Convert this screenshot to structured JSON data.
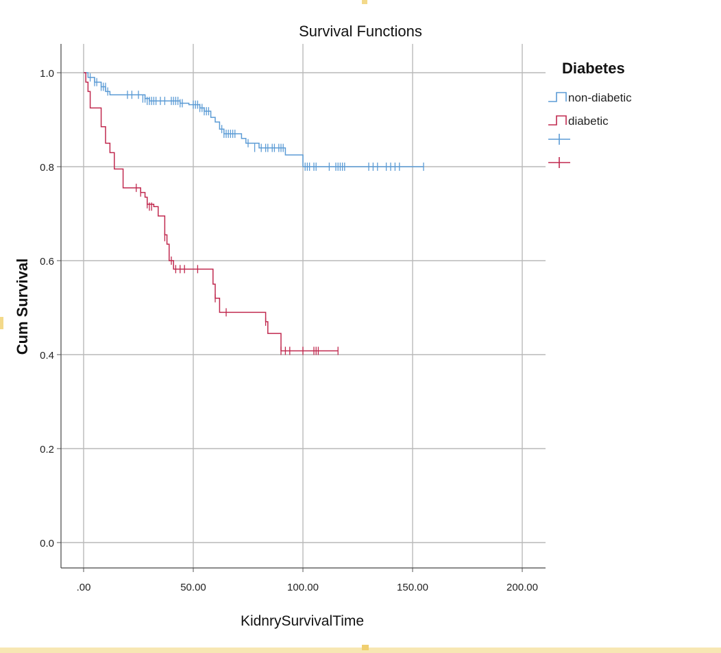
{
  "chart_data": {
    "type": "line",
    "title": "Survival Functions",
    "xlabel": "KidnrySurvivalTime",
    "ylabel": "Cum Survival",
    "xlim": [
      -10,
      210
    ],
    "ylim": [
      -0.06,
      1.05
    ],
    "x_ticks": [
      0,
      50,
      100,
      150,
      200
    ],
    "x_tick_labels": [
      ".00",
      "50.00",
      "100.00",
      "150.00",
      "200.00"
    ],
    "y_ticks": [
      0.0,
      0.2,
      0.4,
      0.6,
      0.8,
      1.0
    ],
    "y_tick_labels": [
      "0.0",
      "0.2",
      "0.4",
      "0.6",
      "0.8",
      "1.0"
    ],
    "grid": true,
    "legend": {
      "title": "Diabetes",
      "placement": "top-right",
      "entries": [
        "non-diabetic",
        "diabetic",
        "",
        ""
      ]
    },
    "series": [
      {
        "name": "non-diabetic",
        "color": "#5b9bd5",
        "step": [
          [
            0,
            1.0
          ],
          [
            2,
            0.99
          ],
          [
            5,
            0.98
          ],
          [
            8,
            0.97
          ],
          [
            10,
            0.96
          ],
          [
            12,
            0.953
          ],
          [
            28,
            0.945
          ],
          [
            30,
            0.94
          ],
          [
            44,
            0.935
          ],
          [
            48,
            0.932
          ],
          [
            53,
            0.925
          ],
          [
            55,
            0.918
          ],
          [
            58,
            0.905
          ],
          [
            60,
            0.895
          ],
          [
            62,
            0.88
          ],
          [
            64,
            0.87
          ],
          [
            72,
            0.86
          ],
          [
            74,
            0.85
          ],
          [
            80,
            0.84
          ],
          [
            92,
            0.825
          ],
          [
            100,
            0.8
          ],
          [
            155,
            0.8
          ]
        ],
        "censored": [
          [
            3,
            0.99
          ],
          [
            5,
            0.98
          ],
          [
            6,
            0.98
          ],
          [
            8,
            0.97
          ],
          [
            9,
            0.97
          ],
          [
            10,
            0.97
          ],
          [
            11,
            0.96
          ],
          [
            20,
            0.953
          ],
          [
            22,
            0.953
          ],
          [
            25,
            0.953
          ],
          [
            27,
            0.945
          ],
          [
            28,
            0.945
          ],
          [
            29,
            0.94
          ],
          [
            30,
            0.94
          ],
          [
            31,
            0.94
          ],
          [
            32,
            0.94
          ],
          [
            33,
            0.94
          ],
          [
            35,
            0.94
          ],
          [
            37,
            0.94
          ],
          [
            40,
            0.94
          ],
          [
            41,
            0.94
          ],
          [
            42,
            0.94
          ],
          [
            43,
            0.94
          ],
          [
            44,
            0.935
          ],
          [
            45,
            0.935
          ],
          [
            50,
            0.932
          ],
          [
            51,
            0.932
          ],
          [
            52,
            0.932
          ],
          [
            53,
            0.925
          ],
          [
            54,
            0.925
          ],
          [
            55,
            0.918
          ],
          [
            56,
            0.918
          ],
          [
            57,
            0.918
          ],
          [
            63,
            0.88
          ],
          [
            64,
            0.87
          ],
          [
            65,
            0.87
          ],
          [
            66,
            0.87
          ],
          [
            67,
            0.87
          ],
          [
            68,
            0.87
          ],
          [
            69,
            0.87
          ],
          [
            75,
            0.85
          ],
          [
            78,
            0.84
          ],
          [
            81,
            0.84
          ],
          [
            83,
            0.84
          ],
          [
            84,
            0.84
          ],
          [
            86,
            0.84
          ],
          [
            87,
            0.84
          ],
          [
            89,
            0.84
          ],
          [
            90,
            0.84
          ],
          [
            91,
            0.84
          ],
          [
            101,
            0.8
          ],
          [
            102,
            0.8
          ],
          [
            103,
            0.8
          ],
          [
            105,
            0.8
          ],
          [
            106,
            0.8
          ],
          [
            112,
            0.8
          ],
          [
            115,
            0.8
          ],
          [
            116,
            0.8
          ],
          [
            117,
            0.8
          ],
          [
            118,
            0.8
          ],
          [
            119,
            0.8
          ],
          [
            130,
            0.8
          ],
          [
            132,
            0.8
          ],
          [
            134,
            0.8
          ],
          [
            138,
            0.8
          ],
          [
            140,
            0.8
          ],
          [
            142,
            0.8
          ],
          [
            144,
            0.8
          ],
          [
            155,
            0.8
          ]
        ]
      },
      {
        "name": "diabetic",
        "color": "#c0284e",
        "step": [
          [
            0,
            1.0
          ],
          [
            1,
            0.98
          ],
          [
            2,
            0.96
          ],
          [
            3,
            0.925
          ],
          [
            8,
            0.885
          ],
          [
            10,
            0.85
          ],
          [
            12,
            0.83
          ],
          [
            14,
            0.795
          ],
          [
            18,
            0.755
          ],
          [
            24,
            0.755
          ],
          [
            26,
            0.745
          ],
          [
            28,
            0.735
          ],
          [
            29,
            0.72
          ],
          [
            32,
            0.715
          ],
          [
            34,
            0.695
          ],
          [
            37,
            0.655
          ],
          [
            38,
            0.635
          ],
          [
            39,
            0.6
          ],
          [
            41,
            0.582
          ],
          [
            59,
            0.55
          ],
          [
            60,
            0.52
          ],
          [
            62,
            0.49
          ],
          [
            83,
            0.47
          ],
          [
            84,
            0.445
          ],
          [
            90,
            0.408
          ],
          [
            116,
            0.408
          ]
        ],
        "censored": [
          [
            24,
            0.755
          ],
          [
            26,
            0.745
          ],
          [
            29,
            0.72
          ],
          [
            30,
            0.715
          ],
          [
            31,
            0.715
          ],
          [
            37,
            0.65
          ],
          [
            40,
            0.6
          ],
          [
            42,
            0.582
          ],
          [
            44,
            0.582
          ],
          [
            46,
            0.582
          ],
          [
            52,
            0.582
          ],
          [
            60,
            0.52
          ],
          [
            65,
            0.49
          ],
          [
            83,
            0.47
          ],
          [
            90,
            0.408
          ],
          [
            92,
            0.408
          ],
          [
            94,
            0.408
          ],
          [
            100,
            0.408
          ],
          [
            105,
            0.408
          ],
          [
            106,
            0.408
          ],
          [
            107,
            0.408
          ],
          [
            116,
            0.408
          ]
        ]
      }
    ]
  }
}
